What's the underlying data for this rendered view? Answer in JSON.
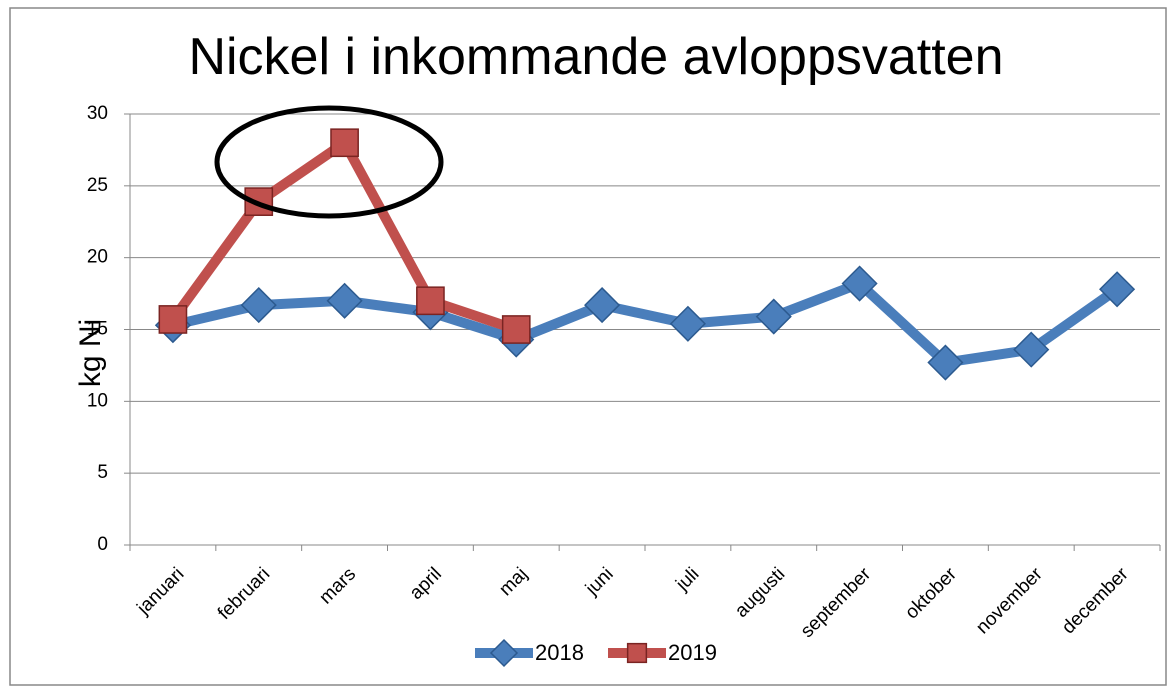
{
  "chart_data": {
    "type": "line",
    "title": "Nickel i inkommande avloppsvatten",
    "y_label": "kg Ni",
    "categories": [
      "januari",
      "februari",
      "mars",
      "april",
      "maj",
      "juni",
      "juli",
      "augusti",
      "september",
      "oktober",
      "november",
      "december"
    ],
    "series": [
      {
        "name": "2018",
        "color": "#4a7ebb",
        "marker": "diamond",
        "values": [
          15.3,
          16.7,
          17.0,
          16.2,
          14.3,
          16.7,
          15.4,
          15.9,
          18.2,
          12.7,
          13.6,
          17.8
        ]
      },
      {
        "name": "2019",
        "color": "#c0504d",
        "marker": "square",
        "values": [
          15.7,
          23.9,
          28.0,
          17.0,
          15.0,
          null,
          null,
          null,
          null,
          null,
          null,
          null
        ]
      }
    ],
    "ylim": [
      0,
      30
    ],
    "yticks": [
      0,
      5,
      10,
      15,
      20,
      25,
      30
    ],
    "grid": true,
    "legend": "bottom"
  }
}
